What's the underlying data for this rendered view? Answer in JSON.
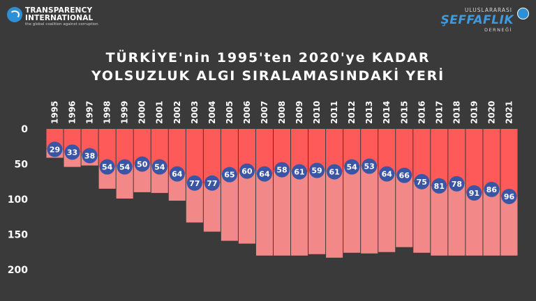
{
  "logo_left": {
    "line1": "TRANSPARENCY",
    "line2": "INTERNATIONAL",
    "tagline": "the global coalition against corruption"
  },
  "logo_right": {
    "line1": "ULUSLARARASI",
    "line2": "ŞEFFAFLIK",
    "line3": "DERNEĞİ"
  },
  "colors": {
    "background": "#3a3a3a",
    "country_band": "#ff5a5a",
    "total_bar": "#f28888",
    "marker": "#3a55a4",
    "text": "#ffffff"
  },
  "chart_data": {
    "type": "bar",
    "title_line1": "TÜRKİYE'nin 1995'ten 2020'ye KADAR",
    "title_line2": "YOLSUZLUK ALGI SIRALAMASINDAKİ YERİ",
    "categories": [
      "1995",
      "1996",
      "1997",
      "1998",
      "1999",
      "2000",
      "2001",
      "2002",
      "2003",
      "2004",
      "2005",
      "2006",
      "2007",
      "2008",
      "2009",
      "2010",
      "2011",
      "2012",
      "2013",
      "2014",
      "2015",
      "2016",
      "2017",
      "2018",
      "2019",
      "2020",
      "2021"
    ],
    "series": [
      {
        "values": [
          29,
          33,
          38,
          54,
          54,
          50,
          54,
          64,
          77,
          77,
          65,
          60,
          64,
          58,
          61,
          59,
          61,
          54,
          53,
          64,
          66,
          75,
          81,
          78,
          91,
          86,
          96
        ]
      },
      {
        "values": [
          41,
          54,
          52,
          85,
          99,
          90,
          91,
          102,
          133,
          146,
          159,
          163,
          180,
          180,
          180,
          178,
          183,
          176,
          177,
          175,
          168,
          176,
          180,
          180,
          180,
          180,
          180
        ]
      }
    ],
    "ylim": [
      0,
      200
    ],
    "yticks": [
      0,
      50,
      100,
      150,
      200
    ],
    "y_inverted": true
  }
}
